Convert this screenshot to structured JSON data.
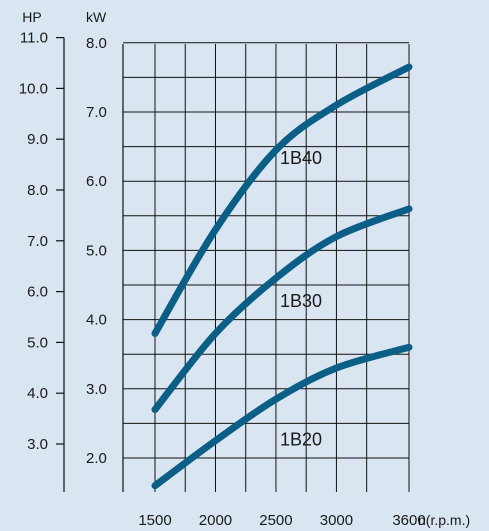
{
  "chart_data": {
    "type": "line",
    "title": "",
    "xlabel": "n(r.p.m.)",
    "ylabel": "kW",
    "ylabel_secondary": "HP",
    "x_ticks": [
      "1500",
      "2000",
      "2500",
      "3000",
      "3600"
    ],
    "y_ticks_kw": [
      "2.0",
      "3.0",
      "4.0",
      "5.0",
      "6.0",
      "7.0",
      "8.0"
    ],
    "y_ticks_hp": [
      "3.0",
      "4.0",
      "5.0",
      "6.0",
      "7.0",
      "8.0",
      "9.0",
      "10.0",
      "11.0"
    ],
    "xlim": [
      1500,
      3600
    ],
    "ylim_kw": [
      1.6,
      8.0
    ],
    "grid": true,
    "line_color": "#0b5f86",
    "series": [
      {
        "name": "1B40",
        "x": [
          1500,
          2000,
          2500,
          3000,
          3600
        ],
        "y": [
          3.8,
          5.3,
          6.45,
          7.1,
          7.65
        ]
      },
      {
        "name": "1B30",
        "x": [
          1500,
          2000,
          2500,
          3000,
          3600
        ],
        "y": [
          2.7,
          3.8,
          4.6,
          5.2,
          5.6
        ]
      },
      {
        "name": "1B20",
        "x": [
          1500,
          2000,
          2500,
          3000,
          3600
        ],
        "y": [
          1.6,
          2.25,
          2.85,
          3.3,
          3.6
        ]
      }
    ]
  }
}
